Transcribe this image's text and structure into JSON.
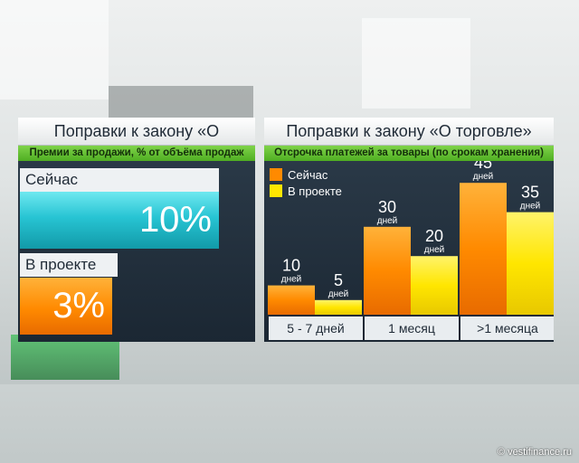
{
  "colors": {
    "now": "#ff8a00",
    "project": "#ffe600",
    "accent": "#5cbf2a",
    "cyan": "#27c4d3"
  },
  "left_panel": {
    "title": "Поправки к закону «О торговле»",
    "subtitle": "Премии за продажи, % от объёма продаж",
    "rows": [
      {
        "label": "Сейчас",
        "value_text": "10%",
        "value": 10
      },
      {
        "label": "В проекте",
        "value_text": "3%",
        "value": 3
      }
    ]
  },
  "right_panel": {
    "title": "Поправки к закону «О торговле»",
    "subtitle": "Отсрочка платежей за товары (по срокам хранения)"
  },
  "chart_data": [
    {
      "type": "bar",
      "categories": [
        "5 - 7 дней",
        "1 месяц",
        ">1 месяца"
      ],
      "series": [
        {
          "name": "Сейчас",
          "values": [
            10,
            30,
            45
          ]
        },
        {
          "name": "В проекте",
          "values": [
            5,
            20,
            35
          ]
        }
      ],
      "unit": "дней",
      "ylim": [
        0,
        50
      ],
      "legend": "top-left"
    }
  ],
  "watermark": "© vestifinance.ru"
}
